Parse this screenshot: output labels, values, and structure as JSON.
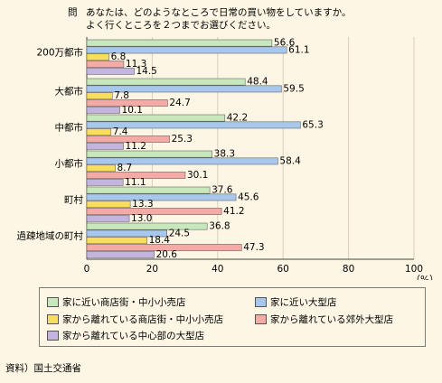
{
  "question": {
    "marker": "問",
    "line1": "あなたは、どのようなところで日常の買い物をしていますか。",
    "line2": "よく行くところを２つまでお選びください。"
  },
  "source": "資料）国土交通省",
  "chart_data": {
    "type": "bar",
    "orientation": "horizontal",
    "categories": [
      "200万都市",
      "大都市",
      "中都市",
      "小都市",
      "町村",
      "過疎地域の町村"
    ],
    "series": [
      {
        "name": "家に近い商店街・中小小売店",
        "color": "#c7e7bd",
        "values": [
          56.6,
          48.4,
          42.2,
          38.3,
          37.6,
          36.8
        ]
      },
      {
        "name": "家に近い大型店",
        "color": "#a8c7ec",
        "values": [
          61.1,
          59.5,
          65.3,
          58.4,
          45.6,
          24.5
        ]
      },
      {
        "name": "家から離れている商店街・中小小売店",
        "color": "#f8df5a",
        "values": [
          6.8,
          7.8,
          7.4,
          8.7,
          13.3,
          18.4
        ]
      },
      {
        "name": "家から離れている郊外大型店",
        "color": "#f6aaa6",
        "values": [
          11.3,
          24.7,
          25.3,
          30.1,
          41.2,
          47.3
        ]
      },
      {
        "name": "家から離れている中心部の大型店",
        "color": "#c3b5e0",
        "values": [
          14.5,
          10.1,
          11.2,
          11.1,
          13.0,
          20.6
        ]
      }
    ],
    "xlim": [
      0,
      100
    ],
    "xticks": [
      "0",
      "20",
      "40",
      "60",
      "80",
      "100"
    ],
    "xunit": "（%）",
    "grid": "vertical",
    "legend_position": "bottom"
  }
}
